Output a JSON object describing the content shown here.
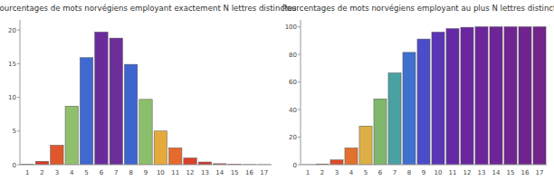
{
  "chart_data": [
    {
      "type": "bar",
      "title": "Pourcentages de mots norvégiens employant exactement N lettres distinctes",
      "categories": [
        1,
        2,
        3,
        4,
        5,
        6,
        7,
        8,
        9,
        10,
        11,
        12,
        13,
        14,
        15,
        16,
        17
      ],
      "values": [
        0.05,
        0.5,
        2.9,
        8.7,
        15.9,
        19.7,
        18.8,
        14.9,
        9.7,
        5.0,
        2.5,
        1.0,
        0.4,
        0.15,
        0.05,
        0.02,
        0.01
      ],
      "colors": [
        "#d23a2a",
        "#d63c2a",
        "#e0572c",
        "#90c06c",
        "#3f68d0",
        "#6a2c9c",
        "#6c2e98",
        "#3e64d0",
        "#8cbf6b",
        "#e6aa3c",
        "#e56a2c",
        "#d8422a",
        "#d23a2a",
        "#d03828",
        "#d03828",
        "#d03828",
        "#d03828"
      ],
      "ylim": [
        0,
        21.5
      ],
      "yticks": [
        0,
        5,
        10,
        15,
        20
      ]
    },
    {
      "type": "bar",
      "title": "Pourcentages de mots norvégiens employant au plus N lettres distinctes",
      "categories": [
        1,
        2,
        3,
        4,
        5,
        6,
        7,
        8,
        9,
        10,
        11,
        12,
        13,
        14,
        15,
        16,
        17
      ],
      "values": [
        0.05,
        0.55,
        3.45,
        12.15,
        28.05,
        47.75,
        66.55,
        81.45,
        91.15,
        96.15,
        98.65,
        99.65,
        100,
        100,
        100,
        100,
        100
      ],
      "colors": [
        "#d23a2a",
        "#d63c2a",
        "#dc4a2a",
        "#e2702e",
        "#ddaf46",
        "#7fb86c",
        "#4aa1a2",
        "#3e70d0",
        "#4b4cc8",
        "#5a36b6",
        "#6529a6",
        "#6a27a0",
        "#6c269a",
        "#6e2596",
        "#702492",
        "#70248e",
        "#71248a"
      ],
      "ylim": [
        0,
        105
      ],
      "yticks": [
        0,
        20,
        40,
        60,
        80,
        100
      ]
    }
  ]
}
